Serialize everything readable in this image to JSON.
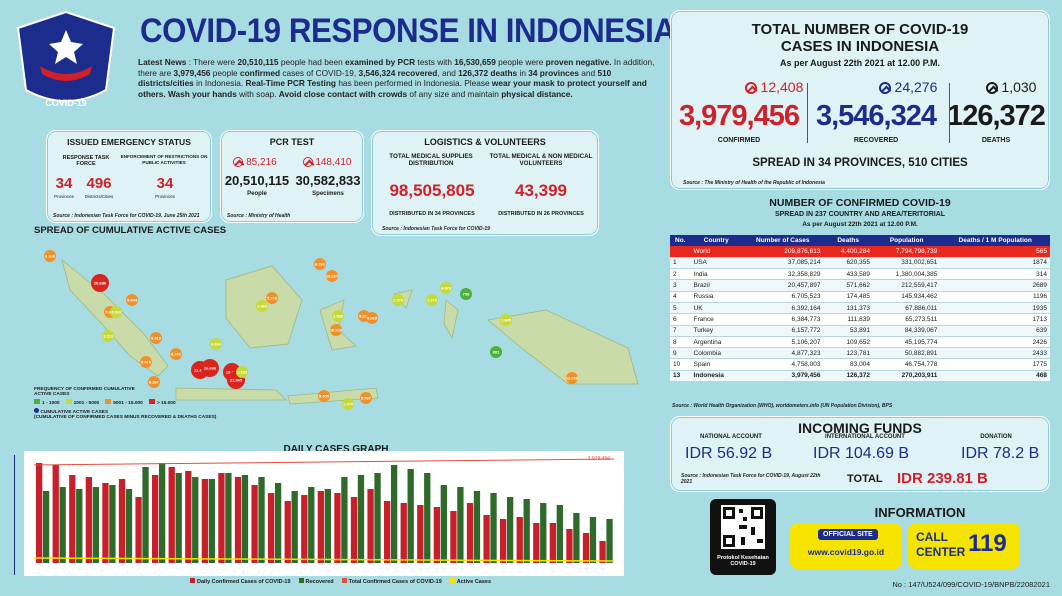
{
  "header": {
    "logo_text": "COVID-19",
    "title": "COVID-19 RESPONSE IN INDONESIA",
    "news": [
      {
        "t": "Latest News",
        "b": true
      },
      {
        "t": " : There were ",
        "b": false
      },
      {
        "t": "20,510,115",
        "b": true
      },
      {
        "t": " people had been ",
        "b": false
      },
      {
        "t": "examined by PCR",
        "b": true
      },
      {
        "t": " tests with ",
        "b": false
      },
      {
        "t": "16,530,659",
        "b": true
      },
      {
        "t": " people were ",
        "b": false
      },
      {
        "t": "proven negative.",
        "b": true
      },
      {
        "t": " In addition, there are ",
        "b": false
      },
      {
        "t": "3,979,456",
        "b": true
      },
      {
        "t": " people ",
        "b": false
      },
      {
        "t": "confirmed",
        "b": true
      },
      {
        "t": " cases of COVID-19, ",
        "b": false
      },
      {
        "t": "3,546,324 recovered",
        "b": true
      },
      {
        "t": ", and ",
        "b": false
      },
      {
        "t": "126,372 deaths",
        "b": true
      },
      {
        "t": " in ",
        "b": false
      },
      {
        "t": "34 provinces",
        "b": true
      },
      {
        "t": " and ",
        "b": false
      },
      {
        "t": "510 districts/cities",
        "b": true
      },
      {
        "t": " in Indonesia. ",
        "b": false
      },
      {
        "t": "Real-Time PCR Testing",
        "b": true
      },
      {
        "t": " has been performed in Indonesia. Please ",
        "b": false
      },
      {
        "t": "wear your mask to protect yourself and others. Wash your hands",
        "b": true
      },
      {
        "t": " with soap. ",
        "b": false
      },
      {
        "t": "Avoid close contact with crowds",
        "b": true
      },
      {
        "t": " of any size and maintain ",
        "b": false
      },
      {
        "t": "physical distance.",
        "b": true
      }
    ]
  },
  "emergency": {
    "title": "ISSUED EMERGENCY STATUS",
    "response_label": "RESPONSE TASK FORCE",
    "enforce_label": "ENFORCEMENT OF RESTRICTIONS ON PUBLIC ACTIVITIES",
    "provinces": "34",
    "provinces_label": "Provinces",
    "districts": "496",
    "districts_label": "Districts/Cities",
    "enforce_value": "34",
    "enforce_unit": "Provinces",
    "source": "Source : Indonesian Task Force for COVID-19, June 25th 2021"
  },
  "pcr": {
    "title": "PCR TEST",
    "people_inc": "85,216",
    "specimen_inc": "148,410",
    "people": "20,510,115",
    "specimens": "30,582,833",
    "people_label": "People",
    "specimens_label": "Specimens",
    "source": "Source : Ministry of Health"
  },
  "logistics": {
    "title": "LOGISTICS & VOLUNTEERS",
    "supplies_label": "TOTAL MEDICAL SUPPLIES DISTRIBUTION",
    "supplies": "98,505,805",
    "supplies_note": "DISTRIBUTED IN 34 PROVINCES",
    "volunteers_label": "TOTAL MEDICAL & NON MEDICAL VOLUNTEERS",
    "volunteers": "43,399",
    "volunteers_note": "DISTRIBUTED IN 26 PROVINCES",
    "source": "Source : Indonesian Task Force for COVID-19"
  },
  "total": {
    "title1": "TOTAL NUMBER OF COVID-19",
    "title2": "CASES IN INDONESIA",
    "asper": "As per August 22th 2021 at 12.00 P.M.",
    "confirmed_inc": "12,408",
    "recovered_inc": "24,276",
    "deaths_inc": "1,030",
    "confirmed": "3,979,456",
    "recovered": "3,546,324",
    "deaths": "126,372",
    "confirmed_label": "CONFIRMED",
    "recovered_label": "RECOVERED",
    "deaths_label": "DEATHS",
    "spread": "SPREAD IN 34 PROVINCES, 510 CITIES",
    "source": "Source : The Ministry of Health of the Republic of Indonesia",
    "colors": {
      "confirmed": "#d0202a",
      "recovered": "#1c2c8c",
      "deaths": "#111111"
    }
  },
  "world": {
    "title": "NUMBER OF CONFIRMED COVID-19",
    "subtitle": "SPREAD IN 237 COUNTRY AND AREA/TERITORIAL",
    "asper": "As per August 22th 2021 at 12.00 P.M.",
    "headers": [
      "No.",
      "Country",
      "Number of Cases",
      "Deaths",
      "Population",
      "Deaths / 1 M Population"
    ],
    "rows": [
      [
        "",
        "World",
        "209,876,613",
        "4,400,284",
        "7,794,798,739",
        "565"
      ],
      [
        "1",
        "USA",
        "37,085,214",
        "620,355",
        "331,002,651",
        "1874"
      ],
      [
        "2",
        "India",
        "32,358,829",
        "433,589",
        "1,380,004,385",
        "314"
      ],
      [
        "3",
        "Brazil",
        "20,457,897",
        "571,662",
        "212,559,417",
        "2689"
      ],
      [
        "4",
        "Russia",
        "6,705,523",
        "174,485",
        "145,934,462",
        "1196"
      ],
      [
        "5",
        "UK",
        "6,392,164",
        "131,373",
        "67,886,011",
        "1935"
      ],
      [
        "6",
        "France",
        "6,384,773",
        "111,839",
        "65,273,511",
        "1713"
      ],
      [
        "7",
        "Turkey",
        "6,157,772",
        "53,891",
        "84,339,067",
        "639"
      ],
      [
        "8",
        "Argentina",
        "5,106,207",
        "109,652",
        "45,195,774",
        "2426"
      ],
      [
        "9",
        "Colombia",
        "4,877,323",
        "123,781",
        "50,882,891",
        "2433"
      ],
      [
        "10",
        "Spain",
        "4,758,003",
        "83,004",
        "46,754,778",
        "1775"
      ],
      [
        "13",
        "Indonesia",
        "3,979,456",
        "126,372",
        "270,203,911",
        "468"
      ]
    ],
    "source": "Source : World Health Organization (WHO), worldometers.info (UN Population Division), BPS"
  },
  "funds": {
    "title": "INCOMING FUNDS",
    "national_label": "NATIONAL ACCOUNT",
    "national": "IDR 56.92 B",
    "intl_label": "INTERNATIONAL ACCOUNT",
    "intl": "IDR 104.69 B",
    "donation_label": "DONATION",
    "donation": "IDR 78.2 B",
    "total_label": "TOTAL",
    "total": "IDR 239.81 B",
    "source": "Source : Indonesian Task Force for COVID-19, August 22th 2021"
  },
  "info": {
    "title": "INFORMATION",
    "qr_caption": "Protokol Kesehatan COVID-19",
    "official_site": "OFFICIAL SITE",
    "url": "www.covid19.go.id",
    "call": "CALL",
    "center": "CENTER",
    "number": "119"
  },
  "map": {
    "title": "SPREAD OF CUMULATIVE ACTIVE CASES",
    "legend_title": "FREQUENCY OF CONFIRMED CUMULATIVE ACTIVE CASES",
    "legend": [
      {
        "label": "1 - 1000",
        "color": "#4caf3c"
      },
      {
        "label": "1001 - 5000",
        "color": "#c6d93a"
      },
      {
        "label": "5001 - 15.000",
        "color": "#f0902a"
      },
      {
        "label": "> 15.000",
        "color": "#d9251d"
      }
    ],
    "legend_active": "CUMULATIVE ACTIVE CASES",
    "legend_note": "(CUMULATIVE OF CONFIRMED CASES MINUS RECOVERED & DEATHS CASES)",
    "markers": [
      "6.338",
      "20.686",
      "9.044",
      "7.632",
      "4.003",
      "3.213",
      "9.415",
      "5.415",
      "8.397",
      "8.242",
      "11.342",
      "26.698",
      "19.123",
      "21.965",
      "1.960",
      "6.280",
      "10.257",
      "2.132",
      "4.634",
      "5.265",
      "1.589",
      "10.826",
      "9.833",
      "9.968",
      "2.379",
      "1.273",
      "4.878",
      "758",
      "881",
      "1.845",
      "12.058",
      "9.450",
      "1.479",
      "5.097"
    ]
  },
  "graph": {
    "title": "DAILY CASES GRAPH",
    "total_label": "3,979,456",
    "legend": [
      "Daily Confirmed Cases of COVID-19",
      "Recovered",
      "Total Confirmed Cases of COVID-19",
      "Active Cases"
    ],
    "colors": {
      "confirmed": "#c8202a",
      "recovered": "#2e6b2a",
      "total": "#e05040",
      "active": "#f5e400"
    }
  },
  "footer": {
    "doc_no": "No : 147/U524/099/COVID-19/BNPB/22082021"
  }
}
